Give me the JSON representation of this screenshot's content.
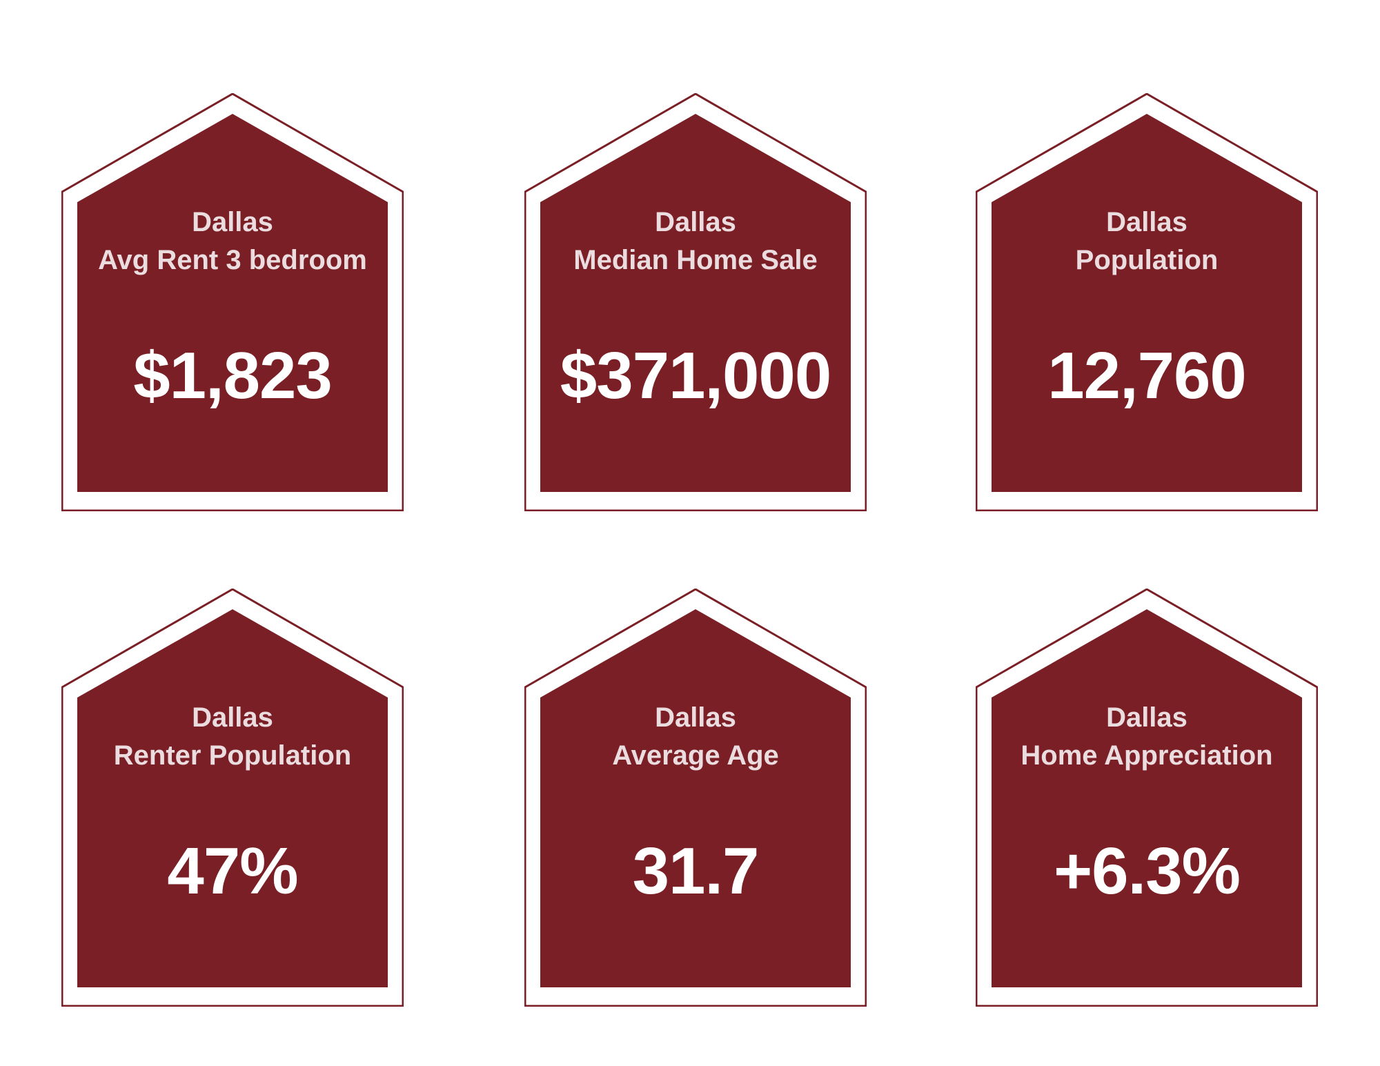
{
  "colors": {
    "house_fill": "#7a1f25",
    "house_outline": "#7a1f25",
    "text_label": "#eadcdf",
    "text_value": "#ffffff",
    "background": "#ffffff"
  },
  "cards": [
    {
      "city": "Dallas",
      "label": "Avg Rent 3 bedroom",
      "value": "$1,823"
    },
    {
      "city": "Dallas",
      "label": "Median Home Sale",
      "value": "$371,000"
    },
    {
      "city": "Dallas",
      "label": "Population",
      "value": "12,760"
    },
    {
      "city": "Dallas",
      "label": "Renter Population",
      "value": "47%"
    },
    {
      "city": "Dallas",
      "label": "Average Age",
      "value": "31.7"
    },
    {
      "city": "Dallas",
      "label": "Home Appreciation",
      "value": "+6.3%"
    }
  ]
}
